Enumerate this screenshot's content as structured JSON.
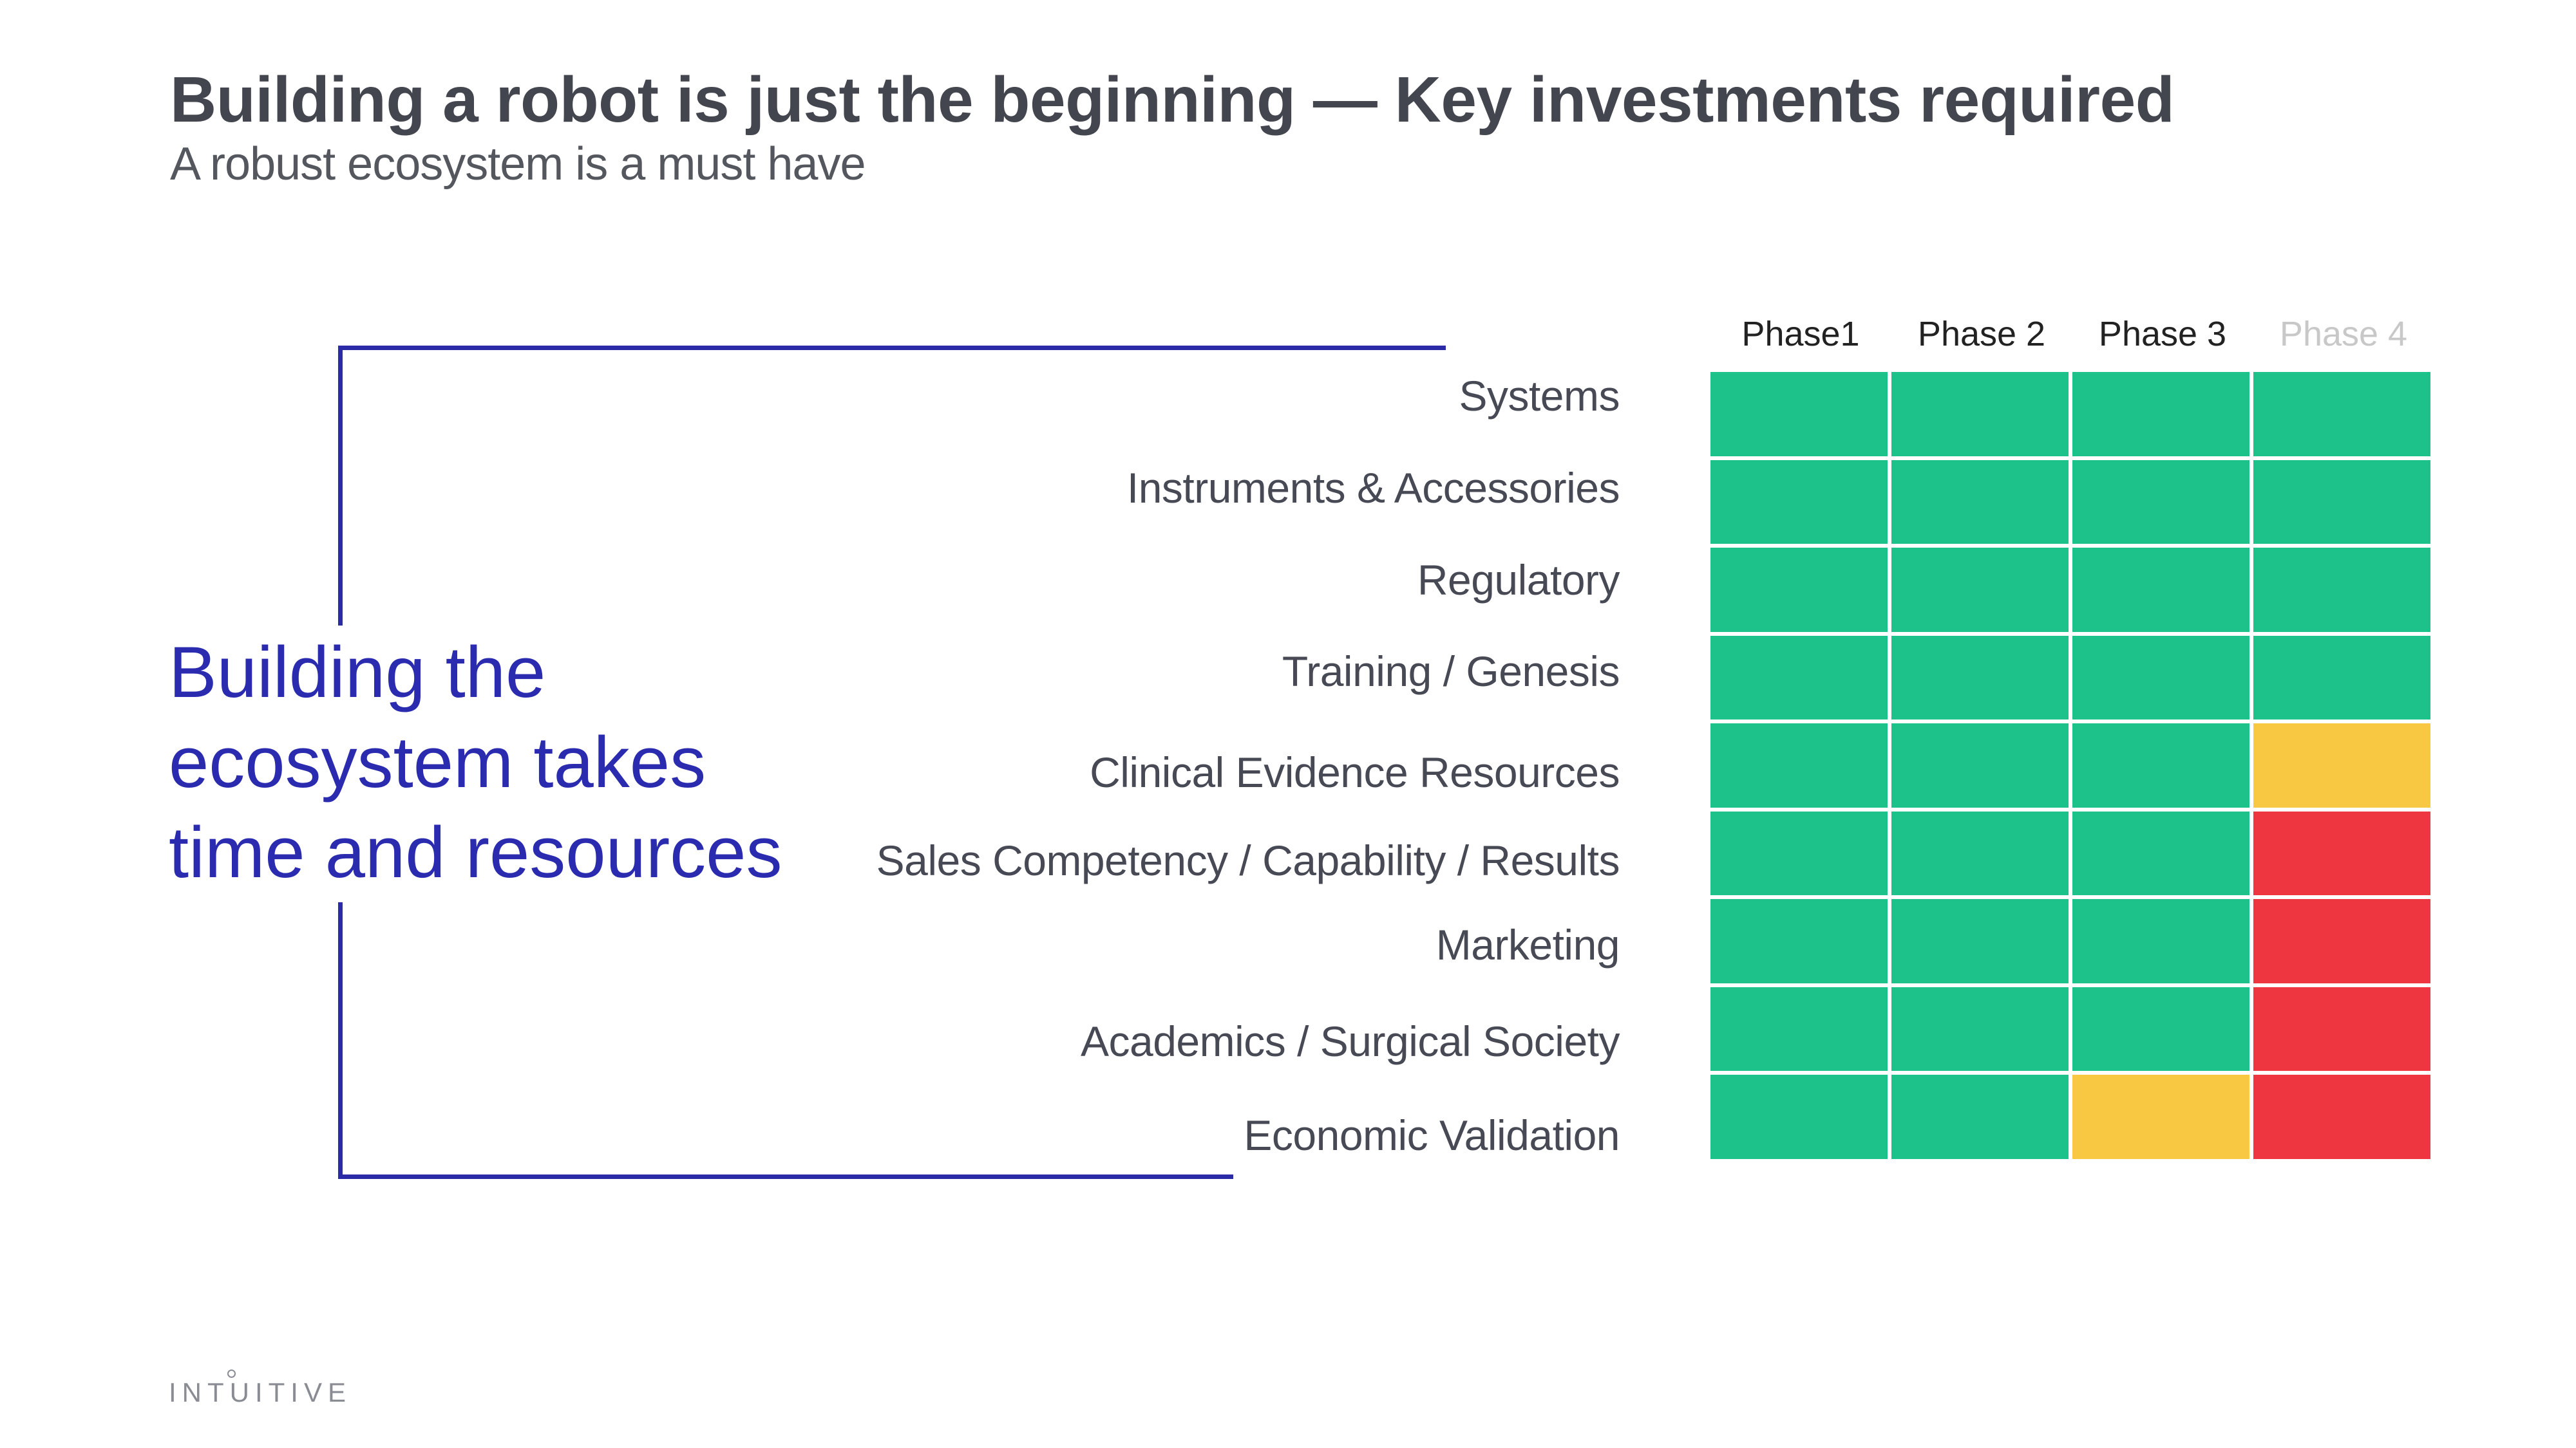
{
  "slide": {
    "title": "Building a robot is just the beginning — Key investments required",
    "subtitle": "A robust ecosystem is a must have",
    "callout_lines": [
      "Building the",
      "ecosystem takes",
      "time and resources"
    ],
    "logo": "INTUITIVE"
  },
  "colors": {
    "green": "#1dc18a",
    "yellow": "#f8c842",
    "red": "#ee3640",
    "accent": "#2b2bb0"
  },
  "table": {
    "phases": [
      {
        "label": "Phase1",
        "dimmed": false
      },
      {
        "label": "Phase 2",
        "dimmed": false
      },
      {
        "label": "Phase 3",
        "dimmed": false
      },
      {
        "label": "Phase 4",
        "dimmed": true
      }
    ],
    "rows": [
      {
        "label": "Systems",
        "status": [
          "green",
          "green",
          "green",
          "green"
        ]
      },
      {
        "label": "Instruments & Accessories",
        "status": [
          "green",
          "green",
          "green",
          "green"
        ]
      },
      {
        "label": "Regulatory",
        "status": [
          "green",
          "green",
          "green",
          "green"
        ]
      },
      {
        "label": "Training / Genesis",
        "status": [
          "green",
          "green",
          "green",
          "green"
        ]
      },
      {
        "label": "Clinical Evidence Resources",
        "status": [
          "green",
          "green",
          "green",
          "yellow"
        ]
      },
      {
        "label": "Sales Competency / Capability / Results",
        "status": [
          "green",
          "green",
          "green",
          "red"
        ]
      },
      {
        "label": "Marketing",
        "status": [
          "green",
          "green",
          "green",
          "red"
        ]
      },
      {
        "label": "Academics / Surgical Society",
        "status": [
          "green",
          "green",
          "green",
          "red"
        ]
      },
      {
        "label": "Economic Validation",
        "status": [
          "green",
          "green",
          "yellow",
          "red"
        ]
      }
    ]
  }
}
